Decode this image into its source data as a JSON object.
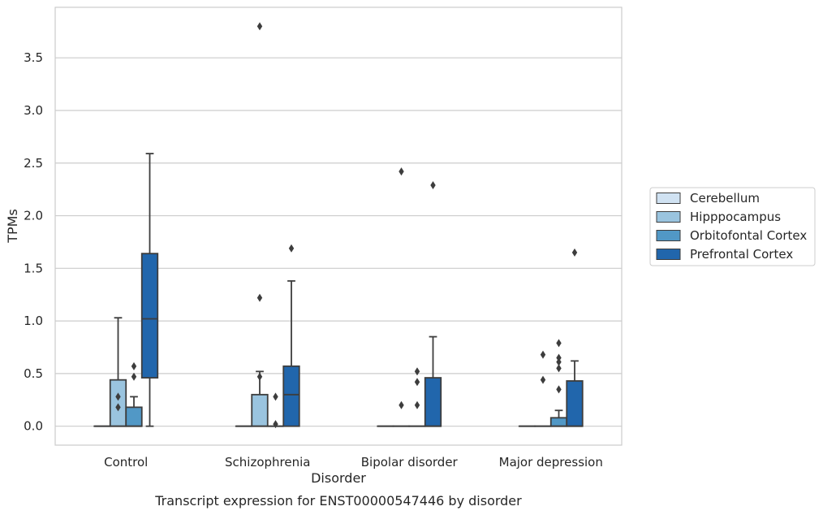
{
  "chart_data": {
    "type": "box",
    "caption": "Transcript expression for ENST00000547446 by disorder",
    "xlabel": "Disorder",
    "ylabel": "TPMs",
    "ylim": [
      -0.18,
      3.98
    ],
    "yticks": [
      0.0,
      0.5,
      1.0,
      1.5,
      2.0,
      2.5,
      3.0,
      3.5
    ],
    "ytick_labels": [
      "0.0",
      "0.5",
      "1.0",
      "1.5",
      "2.0",
      "2.5",
      "3.0",
      "3.5"
    ],
    "grid": true,
    "legend_position": "right",
    "categories": [
      "Control",
      "Schizophrenia",
      "Bipolar disorder",
      "Major depression"
    ],
    "series": [
      {
        "name": "Cerebellum",
        "color": "#d0e2f2",
        "boxes": [
          {
            "min": 0,
            "q1": 0,
            "median": 0,
            "q3": 0,
            "max": 0,
            "outliers": []
          },
          {
            "min": 0,
            "q1": 0,
            "median": 0,
            "q3": 0,
            "max": 0,
            "outliers": []
          },
          {
            "min": 0,
            "q1": 0,
            "median": 0,
            "q3": 0,
            "max": 0,
            "outliers": []
          },
          {
            "min": 0,
            "q1": 0,
            "median": 0,
            "q3": 0,
            "max": 0,
            "outliers": []
          }
        ]
      },
      {
        "name": "Hipppocampus",
        "color": "#9ac4df",
        "boxes": [
          {
            "min": 0,
            "q1": 0,
            "median": 0,
            "q3": 0.44,
            "max": 1.03,
            "outliers": [
              0.18,
              0.28
            ]
          },
          {
            "min": 0,
            "q1": 0,
            "median": 0,
            "q3": 0.3,
            "max": 0.52,
            "outliers": [
              0.47,
              1.22,
              3.8
            ]
          },
          {
            "min": 0,
            "q1": 0,
            "median": 0,
            "q3": 0,
            "max": 0,
            "outliers": [
              0.2,
              2.42
            ]
          },
          {
            "min": 0,
            "q1": 0,
            "median": 0,
            "q3": 0,
            "max": 0,
            "outliers": [
              0.44,
              0.68
            ]
          }
        ]
      },
      {
        "name": "Orbitofontal Cortex",
        "color": "#5198c6",
        "boxes": [
          {
            "min": 0,
            "q1": 0,
            "median": 0,
            "q3": 0.18,
            "max": 0.28,
            "outliers": [
              0.47,
              0.57
            ]
          },
          {
            "min": 0,
            "q1": 0,
            "median": 0,
            "q3": 0,
            "max": 0,
            "outliers": [
              0.02,
              0.28
            ]
          },
          {
            "min": 0,
            "q1": 0,
            "median": 0,
            "q3": 0,
            "max": 0,
            "outliers": [
              0.2,
              0.42,
              0.52
            ]
          },
          {
            "min": 0,
            "q1": 0,
            "median": 0,
            "q3": 0.08,
            "max": 0.15,
            "outliers": [
              0.35,
              0.55,
              0.65,
              0.61,
              0.79
            ]
          }
        ]
      },
      {
        "name": "Prefrontal Cortex",
        "color": "#2166ac",
        "boxes": [
          {
            "min": 0,
            "q1": 0.46,
            "median": 1.02,
            "q3": 1.64,
            "max": 2.59,
            "outliers": []
          },
          {
            "min": 0,
            "q1": 0,
            "median": 0.3,
            "q3": 0.57,
            "max": 1.38,
            "outliers": [
              1.69
            ]
          },
          {
            "min": 0,
            "q1": 0,
            "median": 0,
            "q3": 0.46,
            "max": 0.85,
            "outliers": [
              2.29
            ]
          },
          {
            "min": 0,
            "q1": 0,
            "median": 0,
            "q3": 0.43,
            "max": 0.62,
            "outliers": [
              1.65
            ]
          }
        ]
      }
    ]
  }
}
